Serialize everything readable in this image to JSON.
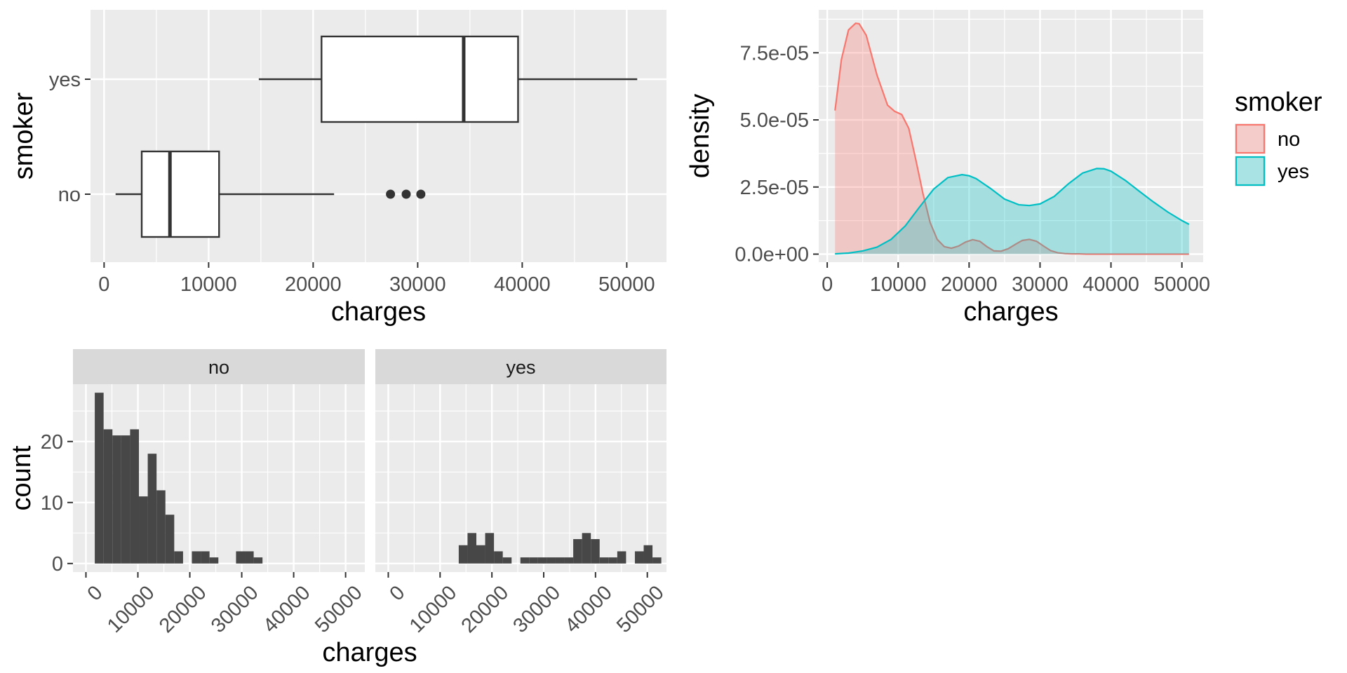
{
  "chart_data": [
    {
      "id": "boxplot",
      "type": "boxplot",
      "orientation": "horizontal",
      "xlabel": "charges",
      "ylabel": "smoker",
      "xlim": [
        -1300,
        53800
      ],
      "xticks": [
        0,
        10000,
        20000,
        30000,
        40000,
        50000
      ],
      "xtick_labels": [
        "0",
        "10000",
        "20000",
        "30000",
        "40000",
        "50000"
      ],
      "categories": [
        "no",
        "yes"
      ],
      "boxes": [
        {
          "category": "no",
          "whisker_low": 1100,
          "q1": 3600,
          "median": 6300,
          "q3": 11000,
          "whisker_high": 22000,
          "outliers": [
            27400,
            28900,
            30300
          ]
        },
        {
          "category": "yes",
          "whisker_low": 14800,
          "q1": 20800,
          "median": 34400,
          "q3": 39600,
          "whisker_high": 51000,
          "outliers": []
        }
      ],
      "grid": true
    },
    {
      "id": "density",
      "type": "area",
      "xlabel": "charges",
      "ylabel": "density",
      "xlim": [
        -1200,
        53000
      ],
      "ylim": [
        -3e-06,
        9.1e-05
      ],
      "xticks": [
        0,
        10000,
        20000,
        30000,
        40000,
        50000
      ],
      "xtick_labels": [
        "0",
        "10000",
        "20000",
        "30000",
        "40000",
        "50000"
      ],
      "yticks": [
        0,
        2.5e-05,
        5e-05,
        7.5e-05
      ],
      "ytick_labels": [
        "0.0e+00",
        "2.5e-05",
        "5.0e-05",
        "7.5e-05"
      ],
      "legend": {
        "title": "smoker",
        "position": "right",
        "entries": [
          "no",
          "yes"
        ]
      },
      "grid": true,
      "series": [
        {
          "name": "no",
          "line_color": "#F8766D",
          "fill_color": "#F8766D",
          "x": [
            1100,
            2000,
            3000,
            4000,
            4500,
            5500,
            7000,
            8500,
            9500,
            10500,
            11500,
            12500,
            13500,
            14500,
            15500,
            16500,
            17500,
            18500,
            19500,
            20500,
            21500,
            22500,
            23500,
            24500,
            25500,
            26500,
            27500,
            28500,
            29500,
            30500,
            31500,
            32500,
            33500,
            34500,
            35500,
            36500,
            38000,
            40000,
            45000,
            51000
          ],
          "y": [
            5.35e-05,
            7.25e-05,
            8.35e-05,
            8.6e-05,
            8.58e-05,
            8.15e-05,
            6.68e-05,
            5.55e-05,
            5.32e-05,
            5.2e-05,
            4.68e-05,
            3.5e-05,
            2.25e-05,
            1.18e-05,
            5.5e-06,
            2.8e-06,
            2.2e-06,
            3e-06,
            4.5e-06,
            5.4e-06,
            4.8e-06,
            2.8e-06,
            1.2e-06,
            1.1e-06,
            2e-06,
            3.6e-06,
            5.1e-06,
            5.5e-06,
            4.8e-06,
            3e-06,
            1.3e-06,
            5e-07,
            2e-07,
            1e-07,
            1e-07,
            0,
            0,
            0,
            0,
            0
          ]
        },
        {
          "name": "yes",
          "line_color": "#00BFC4",
          "fill_color": "#00BFC4",
          "x": [
            1100,
            3000,
            5000,
            7000,
            9000,
            11000,
            13000,
            15000,
            17000,
            19000,
            20000,
            21000,
            23000,
            25000,
            27000,
            28500,
            30000,
            32000,
            34000,
            36000,
            38000,
            39000,
            40000,
            42000,
            44000,
            46000,
            48000,
            50000,
            51000
          ],
          "y": [
            1e-07,
            4e-07,
            1.2e-06,
            2.6e-06,
            5.5e-06,
            1.05e-05,
            1.75e-05,
            2.42e-05,
            2.85e-05,
            2.96e-05,
            2.92e-05,
            2.81e-05,
            2.45e-05,
            2.05e-05,
            1.84e-05,
            1.81e-05,
            1.87e-05,
            2.15e-05,
            2.62e-05,
            3.02e-05,
            3.19e-05,
            3.18e-05,
            3.09e-05,
            2.75e-05,
            2.34e-05,
            1.94e-05,
            1.57e-05,
            1.25e-05,
            1.11e-05
          ]
        }
      ]
    },
    {
      "id": "histogram",
      "type": "bar",
      "subtype": "faceted-histogram",
      "xlabel": "charges",
      "ylabel": "count",
      "xlim": [
        -2500,
        53700
      ],
      "ylim": [
        -1.4,
        29.4
      ],
      "xticks": [
        0,
        10000,
        20000,
        30000,
        40000,
        50000
      ],
      "xtick_labels": [
        "0",
        "10000",
        "20000",
        "30000",
        "40000",
        "50000"
      ],
      "yticks": [
        0,
        10,
        20
      ],
      "ytick_labels": [
        "0",
        "10",
        "20"
      ],
      "bin_start": 0,
      "bin_width": 1700,
      "grid": true,
      "facets": [
        {
          "label": "no",
          "counts": [
            0,
            28,
            22,
            21,
            21,
            22,
            11,
            18,
            12,
            8,
            2,
            0,
            2,
            2,
            1,
            0,
            0,
            2,
            2,
            1,
            0,
            0,
            0,
            0,
            0,
            0,
            0,
            0,
            0,
            0,
            0
          ]
        },
        {
          "label": "yes",
          "counts": [
            0,
            0,
            0,
            0,
            0,
            0,
            0,
            0,
            3,
            5,
            3,
            5,
            2,
            1,
            0,
            1,
            1,
            1,
            1,
            1,
            1,
            4,
            5,
            4,
            1,
            1,
            2,
            0,
            2,
            3,
            1
          ]
        }
      ]
    }
  ]
}
